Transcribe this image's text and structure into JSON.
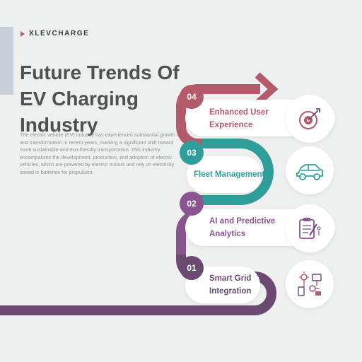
{
  "brand": {
    "name": "XLEVCHARGE"
  },
  "title": "Future Trends Of EV Charging Industry",
  "description": "The electric vehicle (EV) industry has experienced substantial growth and transformation in recent years, marking a significant shift toward more sustainable and eco-friendly transportation. This industry encompasses the development, production, and adoption of electric vehicles, which are powered by electric motors and rely on electricity stored in batteries for propulsion.",
  "colors": {
    "background": "#eef0ef",
    "step1": "#6b4a72",
    "step2": "#8a5490",
    "step3": "#2f9e9b",
    "step4": "#b35a6b"
  },
  "steps": [
    {
      "number": "04",
      "label": "Enhanced User Experience",
      "icon": "target-icon"
    },
    {
      "number": "03",
      "label": "Fleet Management",
      "icon": "car-icon"
    },
    {
      "number": "02",
      "label": "AI and Predictive Analytics",
      "icon": "clipboard-analytics-icon"
    },
    {
      "number": "01",
      "label": "Smart Grid Integration",
      "icon": "smart-grid-icon"
    }
  ]
}
